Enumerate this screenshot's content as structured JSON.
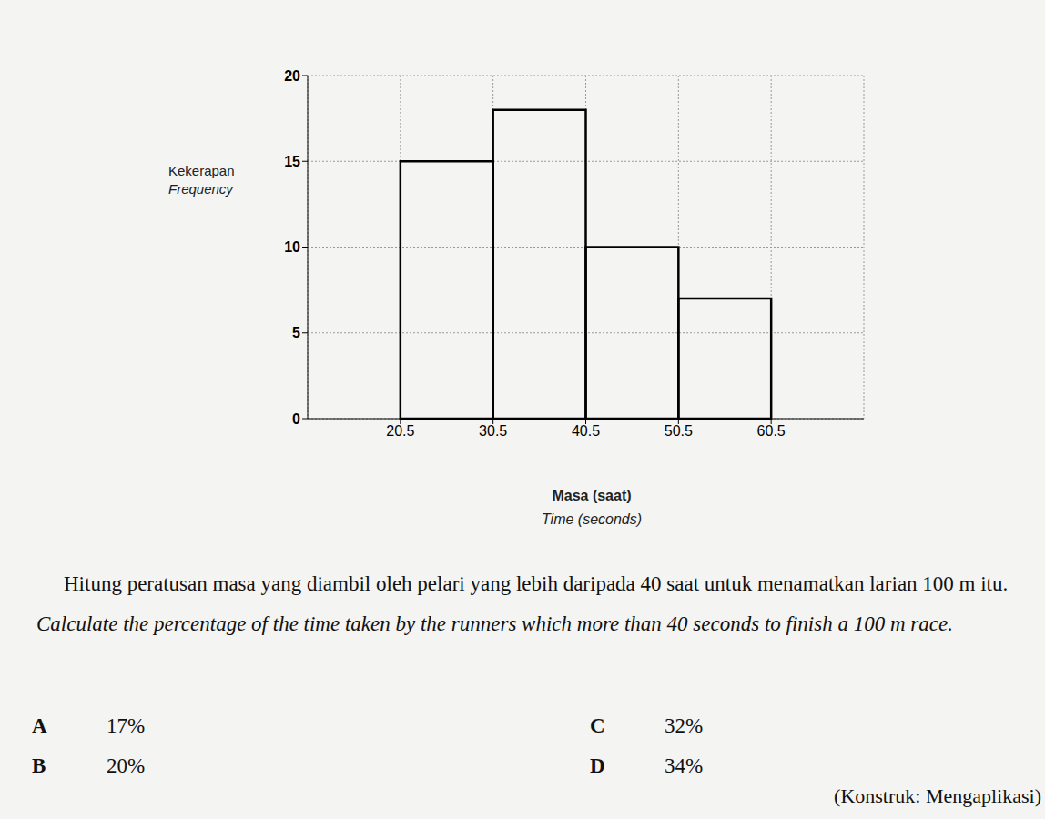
{
  "chart_data": {
    "type": "histogram",
    "x_label": [
      "Masa (saat)",
      "Time (seconds)"
    ],
    "y_label": [
      "Kekerapan",
      "Frequency"
    ],
    "bins": [
      20.5,
      30.5,
      40.5,
      50.5,
      60.5
    ],
    "values": [
      15,
      18,
      10,
      7
    ],
    "color": "#000000",
    "xlim": [
      10.5,
      70.5
    ],
    "xticks": [
      20.5,
      30.5,
      40.5,
      50.5,
      60.5
    ],
    "ylim": [
      0,
      20
    ],
    "yticks": [
      0,
      5,
      10,
      15,
      20
    ],
    "grid": true
  },
  "question": {
    "text_ms": "Hitung peratusan masa yang diambil oleh pelari yang lebih daripada 40 saat untuk menamatkan larian 100 m itu.",
    "text_en": "Calculate the percentage of the time taken by the runners which more than 40 seconds to finish a 100 m race.",
    "options": [
      {
        "letter": "A",
        "text": "17%"
      },
      {
        "letter": "B",
        "text": "20%"
      },
      {
        "letter": "C",
        "text": "32%"
      },
      {
        "letter": "D",
        "text": "34%"
      }
    ],
    "construct": "(Konstruk: Mengaplikasi)"
  }
}
